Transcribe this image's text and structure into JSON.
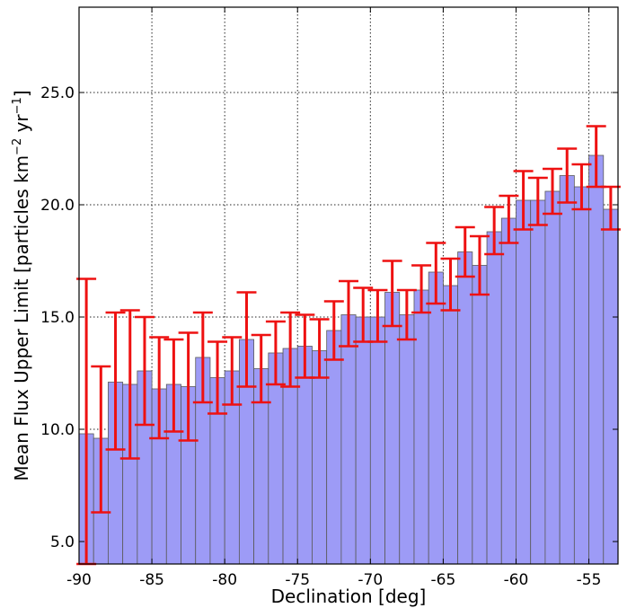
{
  "chart_data": {
    "type": "bar",
    "xlabel": "Declination [deg]",
    "ylabel": {
      "prefix": "Mean Flux Upper Limit [particles km",
      "exp1": "−2",
      "mid": " yr",
      "exp2": "−1",
      "suffix": "]"
    },
    "xlim": [
      -90,
      -53
    ],
    "ylim": [
      4,
      28.8
    ],
    "x_ticks": [
      -90,
      -85,
      -80,
      -75,
      -70,
      -65,
      -60,
      -55
    ],
    "y_ticks": [
      5.0,
      10.0,
      15.0,
      20.0,
      25.0
    ],
    "grid": true,
    "bar_color": "#9d9bf6",
    "bar_edge_color": "#5a5a5a",
    "errorbar_color": "#ee1111",
    "bin_width": 1,
    "bins": [
      {
        "x": -89.5,
        "value": 9.8,
        "err_low": 4.0,
        "err_high": 16.7
      },
      {
        "x": -88.5,
        "value": 9.6,
        "err_low": 6.3,
        "err_high": 12.8
      },
      {
        "x": -87.5,
        "value": 12.1,
        "err_low": 9.1,
        "err_high": 15.2
      },
      {
        "x": -86.5,
        "value": 12.0,
        "err_low": 8.7,
        "err_high": 15.3
      },
      {
        "x": -85.5,
        "value": 12.6,
        "err_low": 10.2,
        "err_high": 15.0
      },
      {
        "x": -84.5,
        "value": 11.8,
        "err_low": 9.6,
        "err_high": 14.1
      },
      {
        "x": -83.5,
        "value": 12.0,
        "err_low": 9.9,
        "err_high": 14.0
      },
      {
        "x": -82.5,
        "value": 11.9,
        "err_low": 9.5,
        "err_high": 14.3
      },
      {
        "x": -81.5,
        "value": 13.2,
        "err_low": 11.2,
        "err_high": 15.2
      },
      {
        "x": -80.5,
        "value": 12.3,
        "err_low": 10.7,
        "err_high": 13.9
      },
      {
        "x": -79.5,
        "value": 12.6,
        "err_low": 11.1,
        "err_high": 14.1
      },
      {
        "x": -78.5,
        "value": 14.0,
        "err_low": 11.9,
        "err_high": 16.1
      },
      {
        "x": -77.5,
        "value": 12.7,
        "err_low": 11.2,
        "err_high": 14.2
      },
      {
        "x": -76.5,
        "value": 13.4,
        "err_low": 12.0,
        "err_high": 14.8
      },
      {
        "x": -75.5,
        "value": 13.6,
        "err_low": 11.9,
        "err_high": 15.2
      },
      {
        "x": -74.5,
        "value": 13.7,
        "err_low": 12.3,
        "err_high": 15.1
      },
      {
        "x": -73.5,
        "value": 13.5,
        "err_low": 12.3,
        "err_high": 14.9
      },
      {
        "x": -72.5,
        "value": 14.4,
        "err_low": 13.1,
        "err_high": 15.7
      },
      {
        "x": -71.5,
        "value": 15.1,
        "err_low": 13.7,
        "err_high": 16.6
      },
      {
        "x": -70.5,
        "value": 15.0,
        "err_low": 13.9,
        "err_high": 16.3
      },
      {
        "x": -69.5,
        "value": 15.0,
        "err_low": 13.9,
        "err_high": 16.2
      },
      {
        "x": -68.5,
        "value": 16.1,
        "err_low": 14.6,
        "err_high": 17.5
      },
      {
        "x": -67.5,
        "value": 15.1,
        "err_low": 14.0,
        "err_high": 16.2
      },
      {
        "x": -66.5,
        "value": 16.2,
        "err_low": 15.2,
        "err_high": 17.3
      },
      {
        "x": -65.5,
        "value": 17.0,
        "err_low": 15.6,
        "err_high": 18.3
      },
      {
        "x": -64.5,
        "value": 16.4,
        "err_low": 15.3,
        "err_high": 17.6
      },
      {
        "x": -63.5,
        "value": 17.9,
        "err_low": 16.8,
        "err_high": 19.0
      },
      {
        "x": -62.5,
        "value": 17.3,
        "err_low": 16.0,
        "err_high": 18.6
      },
      {
        "x": -61.5,
        "value": 18.8,
        "err_low": 17.8,
        "err_high": 19.9
      },
      {
        "x": -60.5,
        "value": 19.4,
        "err_low": 18.3,
        "err_high": 20.4
      },
      {
        "x": -59.5,
        "value": 20.2,
        "err_low": 18.9,
        "err_high": 21.5
      },
      {
        "x": -58.5,
        "value": 20.2,
        "err_low": 19.1,
        "err_high": 21.2
      },
      {
        "x": -57.5,
        "value": 20.6,
        "err_low": 19.6,
        "err_high": 21.6
      },
      {
        "x": -56.5,
        "value": 21.3,
        "err_low": 20.1,
        "err_high": 22.5
      },
      {
        "x": -55.5,
        "value": 20.8,
        "err_low": 19.8,
        "err_high": 21.8
      },
      {
        "x": -54.5,
        "value": 22.2,
        "err_low": 20.8,
        "err_high": 23.5
      },
      {
        "x": -53.5,
        "value": 19.8,
        "err_low": 18.9,
        "err_high": 20.8
      }
    ]
  }
}
